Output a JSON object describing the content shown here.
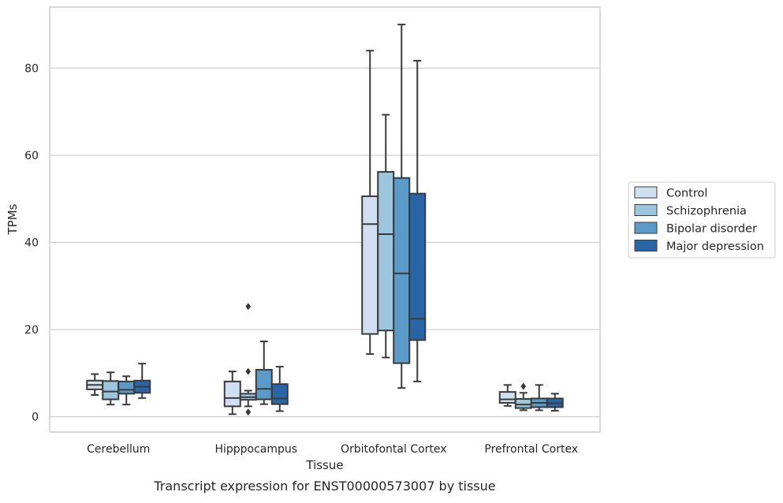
{
  "chart_data": {
    "type": "boxplot",
    "title": "Transcript expression for ENST00000573007 by tissue",
    "xlabel": "Tissue",
    "ylabel": "TPMs",
    "ylim": [
      -3.5,
      94
    ],
    "yticks": [
      0,
      20,
      40,
      60,
      80
    ],
    "grid": "horizontal",
    "legend_position": "right",
    "categories": [
      "Cerebellum",
      "Hipppocampus",
      "Orbitofontal Cortex",
      "Prefrontal Cortex"
    ],
    "series": [
      {
        "name": "Control",
        "color": "#d0e0f0",
        "boxes": [
          {
            "whislo": 5.0,
            "q1": 6.3,
            "med": 7.3,
            "q3": 8.3,
            "whishi": 9.8,
            "fliers": []
          },
          {
            "whislo": 0.6,
            "q1": 2.4,
            "med": 4.3,
            "q3": 8.1,
            "whishi": 10.4,
            "fliers": []
          },
          {
            "whislo": 14.4,
            "q1": 19.0,
            "med": 44.2,
            "q3": 50.6,
            "whishi": 84.0,
            "fliers": []
          },
          {
            "whislo": 2.5,
            "q1": 3.2,
            "med": 4.0,
            "q3": 5.7,
            "whishi": 7.3,
            "fliers": []
          }
        ]
      },
      {
        "name": "Schizophrenia",
        "color": "#9cc5df",
        "boxes": [
          {
            "whislo": 2.8,
            "q1": 4.0,
            "med": 5.8,
            "q3": 8.2,
            "whishi": 10.2,
            "fliers": []
          },
          {
            "whislo": 2.4,
            "q1": 3.9,
            "med": 4.5,
            "q3": 5.3,
            "whishi": 6.0,
            "fliers": [
              25.3,
              10.4,
              1.1
            ]
          },
          {
            "whislo": 13.6,
            "q1": 19.8,
            "med": 41.9,
            "q3": 56.2,
            "whishi": 69.3,
            "fliers": []
          },
          {
            "whislo": 1.5,
            "q1": 2.0,
            "med": 2.8,
            "q3": 4.1,
            "whishi": 5.5,
            "fliers": [
              7.0
            ]
          }
        ]
      },
      {
        "name": "Bipolar disorder",
        "color": "#5b9bc9",
        "boxes": [
          {
            "whislo": 2.8,
            "q1": 5.3,
            "med": 6.2,
            "q3": 8.1,
            "whishi": 9.3,
            "fliers": []
          },
          {
            "whislo": 2.9,
            "q1": 4.0,
            "med": 6.4,
            "q3": 10.8,
            "whishi": 17.3,
            "fliers": []
          },
          {
            "whislo": 6.6,
            "q1": 12.3,
            "med": 32.9,
            "q3": 54.8,
            "whishi": 90.0,
            "fliers": []
          },
          {
            "whislo": 1.5,
            "q1": 2.2,
            "med": 3.2,
            "q3": 4.2,
            "whishi": 7.3,
            "fliers": []
          }
        ]
      },
      {
        "name": "Major depression",
        "color": "#2866a8",
        "boxes": [
          {
            "whislo": 4.3,
            "q1": 5.5,
            "med": 6.9,
            "q3": 8.3,
            "whishi": 12.2,
            "fliers": []
          },
          {
            "whislo": 1.3,
            "q1": 2.9,
            "med": 4.2,
            "q3": 7.5,
            "whishi": 11.5,
            "fliers": []
          },
          {
            "whislo": 8.1,
            "q1": 17.6,
            "med": 22.5,
            "q3": 51.2,
            "whishi": 81.7,
            "fliers": []
          },
          {
            "whislo": 1.4,
            "q1": 2.2,
            "med": 3.1,
            "q3": 4.2,
            "whishi": 5.3,
            "fliers": []
          }
        ]
      }
    ]
  }
}
